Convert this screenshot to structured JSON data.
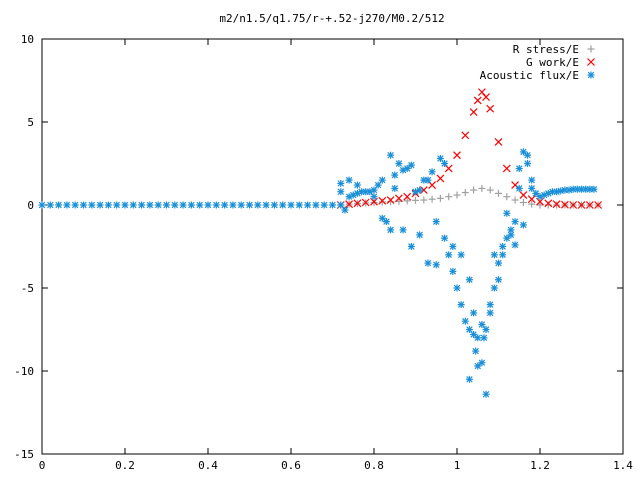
{
  "chart_data": {
    "type": "scatter",
    "title": "m2/n1.5/q1.75/r-+.52-j270/M0.2/512",
    "xlabel": "",
    "ylabel": "",
    "xlim": [
      0,
      1.4
    ],
    "ylim": [
      -15,
      10
    ],
    "x_ticks": [
      0,
      0.2,
      0.4,
      0.6,
      0.8,
      1,
      1.2,
      1.4
    ],
    "y_ticks": [
      -15,
      -10,
      -5,
      0,
      5,
      10
    ],
    "x_tick_labels": [
      "0",
      "0.2",
      "0.4",
      "0.6",
      "0.8",
      "1",
      "1.2",
      "1.4"
    ],
    "y_tick_labels": [
      "-15",
      "-10",
      "-5",
      "0",
      "5",
      "10"
    ],
    "grid": false,
    "legend_position": "top-right",
    "series": [
      {
        "name": "R stress/E",
        "marker": "plus",
        "color": "#a0a0a0",
        "x": [
          0.72,
          0.74,
          0.76,
          0.78,
          0.8,
          0.82,
          0.84,
          0.86,
          0.88,
          0.9,
          0.92,
          0.94,
          0.96,
          0.98,
          1.0,
          1.02,
          1.04,
          1.06,
          1.08,
          1.1,
          1.12,
          1.14,
          1.16,
          1.18,
          1.2,
          1.22,
          1.24,
          1.26,
          1.28,
          1.3,
          1.32,
          1.34
        ],
        "y": [
          0.0,
          0.05,
          0.08,
          0.12,
          0.15,
          0.18,
          0.2,
          0.22,
          0.25,
          0.28,
          0.3,
          0.35,
          0.4,
          0.5,
          0.6,
          0.75,
          0.9,
          1.0,
          0.9,
          0.7,
          0.5,
          0.3,
          0.15,
          0.05,
          0.0,
          0.0,
          0.0,
          0.0,
          0.0,
          0.0,
          0.0,
          0.0
        ]
      },
      {
        "name": "G work/E",
        "marker": "cross",
        "color": "#ff0000",
        "x": [
          0.72,
          0.74,
          0.76,
          0.78,
          0.8,
          0.82,
          0.84,
          0.86,
          0.88,
          0.9,
          0.92,
          0.94,
          0.96,
          0.98,
          1.0,
          1.02,
          1.04,
          1.05,
          1.06,
          1.07,
          1.08,
          1.1,
          1.12,
          1.14,
          1.16,
          1.18,
          1.2,
          1.22,
          1.24,
          1.26,
          1.28,
          1.3,
          1.32,
          1.34
        ],
        "y": [
          0.0,
          0.05,
          0.1,
          0.15,
          0.2,
          0.25,
          0.3,
          0.4,
          0.5,
          0.7,
          0.9,
          1.2,
          1.6,
          2.2,
          3.0,
          4.2,
          5.6,
          6.3,
          6.8,
          6.5,
          5.8,
          3.8,
          2.2,
          1.2,
          0.6,
          0.35,
          0.2,
          0.1,
          0.05,
          0.02,
          0.0,
          0.0,
          0.0,
          0.0
        ]
      },
      {
        "name": "Acoustic flux/E",
        "marker": "star",
        "color": "#1a8fd8",
        "x": [
          0.72,
          0.73,
          0.74,
          0.75,
          0.76,
          0.77,
          0.78,
          0.79,
          0.8,
          0.81,
          0.82,
          0.83,
          0.84,
          0.85,
          0.86,
          0.87,
          0.88,
          0.89,
          0.9,
          0.91,
          0.92,
          0.93,
          0.94,
          0.95,
          0.96,
          0.97,
          0.98,
          0.99,
          1.0,
          1.01,
          1.02,
          1.03,
          1.04,
          1.05,
          1.06,
          1.07,
          1.08,
          1.09,
          1.1,
          1.11,
          1.12,
          1.13,
          1.14,
          1.15,
          1.16,
          1.17,
          1.18,
          1.19,
          1.2,
          1.21,
          1.22,
          1.23,
          1.24,
          1.25,
          1.26,
          1.27,
          1.28,
          1.29,
          1.3,
          1.31,
          1.32,
          1.33,
          0.72,
          0.74,
          0.76,
          0.8,
          0.82,
          0.84,
          0.85,
          0.87,
          0.89,
          0.91,
          0.93,
          0.95,
          0.97,
          0.99,
          1.01,
          1.03,
          1.04,
          1.05,
          1.06,
          1.07,
          1.08,
          1.09,
          1.1,
          1.11,
          1.12,
          1.13,
          1.14,
          1.15,
          1.16,
          1.17,
          1.18,
          1.03,
          1.045,
          1.065
        ],
        "y": [
          0.8,
          -0.3,
          0.5,
          0.6,
          0.7,
          0.8,
          0.8,
          0.8,
          0.9,
          1.2,
          1.5,
          -1.0,
          3.0,
          1.8,
          2.5,
          -1.5,
          2.2,
          -2.5,
          0.8,
          -1.8,
          1.5,
          -3.5,
          2.0,
          -3.6,
          2.8,
          -2.0,
          -3.0,
          -4.0,
          -5.0,
          -6.0,
          -7.0,
          -7.5,
          -7.8,
          -8.0,
          -7.2,
          -7.5,
          -6.0,
          -5.0,
          -4.5,
          -3.0,
          -2.0,
          -1.5,
          -1.0,
          1.0,
          3.2,
          2.5,
          1.5,
          0.7,
          0.5,
          0.6,
          0.7,
          0.8,
          0.8,
          0.85,
          0.9,
          0.9,
          0.95,
          0.95,
          0.95,
          0.95,
          0.95,
          0.95,
          1.3,
          1.5,
          1.2,
          0.5,
          -0.8,
          -1.5,
          1.0,
          2.1,
          2.4,
          0.9,
          1.5,
          -1.0,
          2.5,
          -2.5,
          -3.0,
          -4.5,
          -6.5,
          -9.7,
          -9.5,
          -11.4,
          -6.5,
          -3.0,
          -3.5,
          -2.5,
          -0.5,
          -1.8,
          -2.4,
          2.2,
          -1.2,
          3.0,
          1.0,
          -10.5,
          -8.8,
          -8.0
        ]
      },
      {
        "name": "",
        "marker": "star",
        "color": "#1a8fd8",
        "x": [
          0.0,
          0.02,
          0.04,
          0.06,
          0.08,
          0.1,
          0.12,
          0.14,
          0.16,
          0.18,
          0.2,
          0.22,
          0.24,
          0.26,
          0.28,
          0.3,
          0.32,
          0.34,
          0.36,
          0.38,
          0.4,
          0.42,
          0.44,
          0.46,
          0.48,
          0.5,
          0.52,
          0.54,
          0.56,
          0.58,
          0.6,
          0.62,
          0.64,
          0.66,
          0.68,
          0.7,
          0.72
        ],
        "y": [
          0,
          0,
          0,
          0,
          0,
          0,
          0,
          0,
          0,
          0,
          0,
          0,
          0,
          0,
          0,
          0,
          0,
          0,
          0,
          0,
          0,
          0,
          0,
          0,
          0,
          0,
          0,
          0,
          0,
          0,
          0,
          0,
          0,
          0,
          0,
          0,
          0
        ]
      }
    ]
  }
}
